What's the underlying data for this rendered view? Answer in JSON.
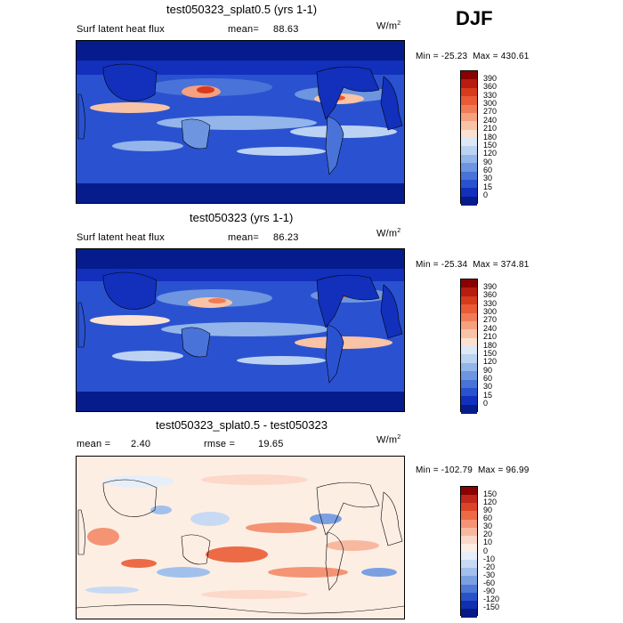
{
  "season": "DJF",
  "panels": [
    {
      "id": "test",
      "title": "test050323_splat0.5 (yrs 1-1)",
      "left_label": "Surf latent heat flux",
      "mean_label": "mean=",
      "mean_value": "88.63",
      "unit_base": "W/m",
      "unit_exp": "2",
      "min_label": "Min =",
      "min_value": "-25.23",
      "max_label": "Max =",
      "max_value": "430.61",
      "colorbar": {
        "levels": [
          "390",
          "360",
          "330",
          "300",
          "270",
          "240",
          "210",
          "180",
          "150",
          "120",
          "90",
          "60",
          "30",
          "15",
          "0"
        ],
        "colors": [
          "#8b0000",
          "#b71c10",
          "#d83a1c",
          "#ea5a35",
          "#f07c55",
          "#f5a07f",
          "#f9c3a6",
          "#fbe2d0",
          "#dde8f7",
          "#bcd2f2",
          "#94b5ea",
          "#6d95e0",
          "#4973d8",
          "#2a52d0",
          "#1230bc",
          "#061c8c"
        ]
      },
      "chart_data": {
        "type": "heatmap",
        "title": "test050323_splat0.5 (yrs 1-1)",
        "variable": "Surf latent heat flux",
        "units": "W/m^2",
        "mean": 88.63,
        "min": -25.23,
        "max": 430.61,
        "contour_levels": [
          0,
          15,
          30,
          60,
          90,
          120,
          150,
          180,
          210,
          240,
          270,
          300,
          330,
          360,
          390
        ]
      }
    },
    {
      "id": "control",
      "title": "test050323 (yrs 1-1)",
      "left_label": "Surf latent heat flux",
      "mean_label": "mean=",
      "mean_value": "86.23",
      "unit_base": "W/m",
      "unit_exp": "2",
      "min_label": "Min =",
      "min_value": "-25.34",
      "max_label": "Max =",
      "max_value": "374.81",
      "colorbar": {
        "levels": [
          "390",
          "360",
          "330",
          "300",
          "270",
          "240",
          "210",
          "180",
          "150",
          "120",
          "90",
          "60",
          "30",
          "15",
          "0"
        ],
        "colors": [
          "#8b0000",
          "#b71c10",
          "#d83a1c",
          "#ea5a35",
          "#f07c55",
          "#f5a07f",
          "#f9c3a6",
          "#fbe2d0",
          "#dde8f7",
          "#bcd2f2",
          "#94b5ea",
          "#6d95e0",
          "#4973d8",
          "#2a52d0",
          "#1230bc",
          "#061c8c"
        ]
      },
      "chart_data": {
        "type": "heatmap",
        "title": "test050323 (yrs 1-1)",
        "variable": "Surf latent heat flux",
        "units": "W/m^2",
        "mean": 86.23,
        "min": -25.34,
        "max": 374.81,
        "contour_levels": [
          0,
          15,
          30,
          60,
          90,
          120,
          150,
          180,
          210,
          240,
          270,
          300,
          330,
          360,
          390
        ]
      }
    },
    {
      "id": "diff",
      "title": "test050323_splat0.5 - test050323",
      "left_label": "mean =",
      "mean_label": "",
      "mean_value": "2.40",
      "rmse_label": "rmse =",
      "rmse_value": "19.65",
      "unit_base": "W/m",
      "unit_exp": "2",
      "min_label": "Min =",
      "min_value": "-102.79",
      "max_label": "Max =",
      "max_value": "96.99",
      "colorbar": {
        "levels": [
          "150",
          "120",
          "90",
          "60",
          "30",
          "20",
          "10",
          "0",
          "-10",
          "-20",
          "-30",
          "-60",
          "-90",
          "-120",
          "-150"
        ],
        "colors": [
          "#8b0000",
          "#c0261a",
          "#dc4428",
          "#ec6a45",
          "#f49474",
          "#f8b8a0",
          "#fbd8c8",
          "#fdeee4",
          "#e6eef9",
          "#c8daf3",
          "#a2c0ec",
          "#7aa0e2",
          "#4f79d6",
          "#2a52c8",
          "#1030b0",
          "#061a86"
        ]
      },
      "chart_data": {
        "type": "heatmap",
        "title": "test050323_splat0.5 - test050323",
        "units": "W/m^2",
        "mean": 2.4,
        "rmse": 19.65,
        "min": -102.79,
        "max": 96.99,
        "contour_levels": [
          -150,
          -120,
          -90,
          -60,
          -30,
          -20,
          -10,
          0,
          10,
          20,
          30,
          60,
          90,
          120,
          150
        ]
      }
    }
  ]
}
